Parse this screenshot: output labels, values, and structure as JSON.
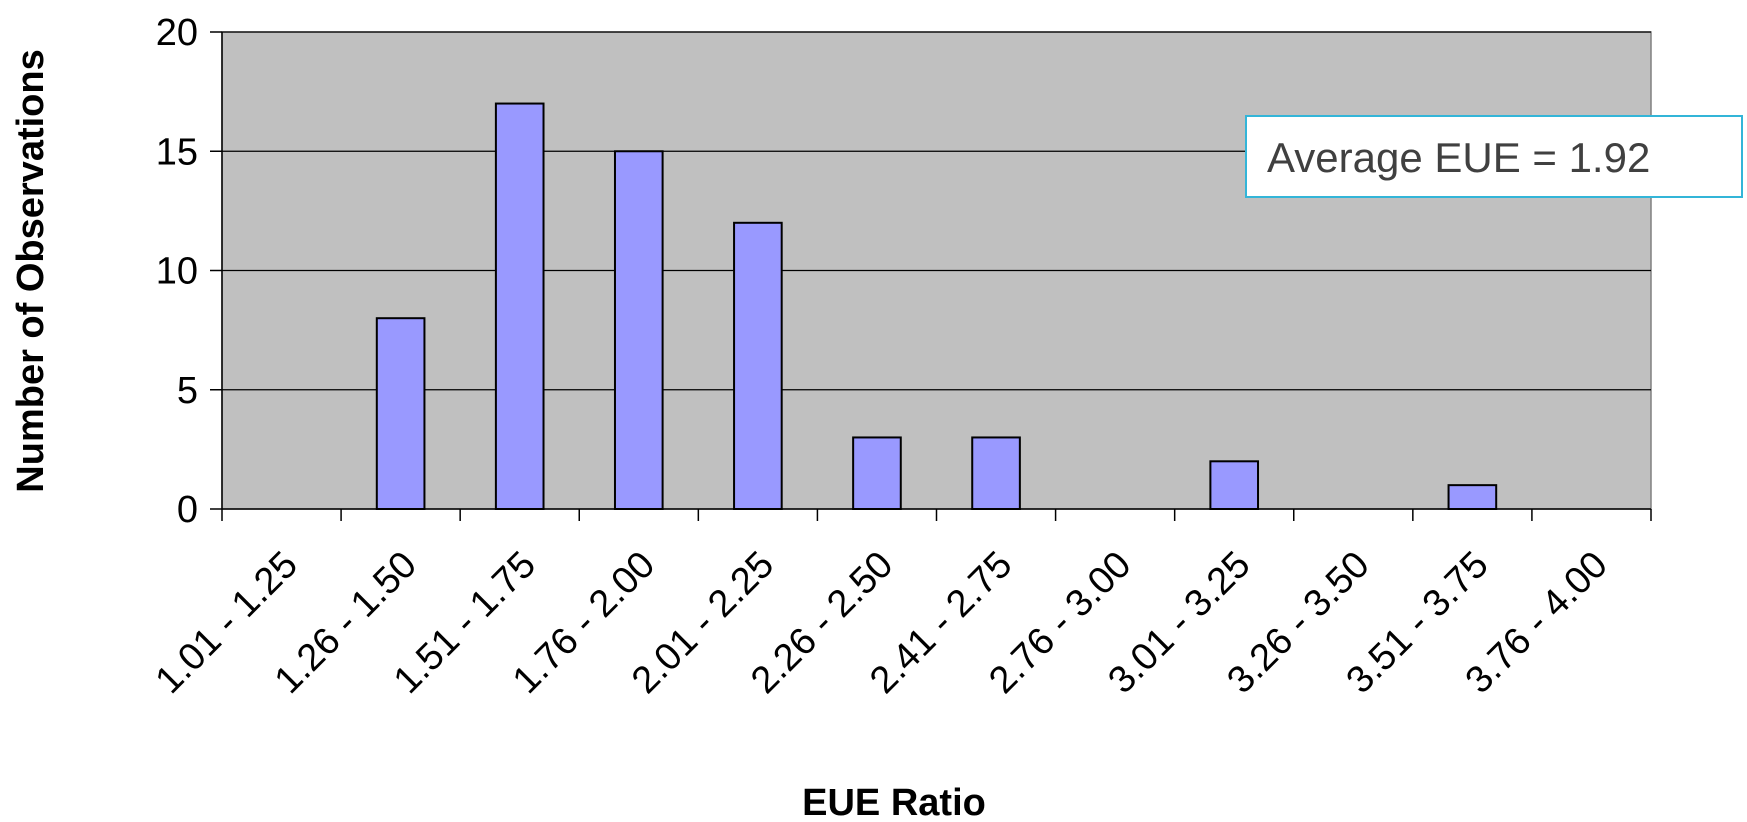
{
  "chart_data": {
    "type": "bar",
    "categories": [
      "1.01 - 1.25",
      "1.26 - 1.50",
      "1.51 - 1.75",
      "1.76 - 2.00",
      "2.01 - 2.25",
      "2.26 - 2.50",
      "2.41 - 2.75",
      "2.76 - 3.00",
      "3.01 - 3.25",
      "3.26 - 3.50",
      "3.51 - 3.75",
      "3.76 - 4.00"
    ],
    "values": [
      0,
      8,
      17,
      15,
      12,
      3,
      3,
      0,
      2,
      0,
      1,
      0
    ],
    "xlabel": "EUE Ratio",
    "ylabel": "Number of Observations",
    "ylim": [
      0,
      20
    ],
    "yticks": [
      0,
      5,
      10,
      15,
      20
    ],
    "grid": true,
    "annotation": "Average EUE  = 1.92",
    "colors": {
      "bar": "#9999ff",
      "plot_background": "#c0c0c0",
      "annotation_border": "#33b5d8"
    }
  }
}
